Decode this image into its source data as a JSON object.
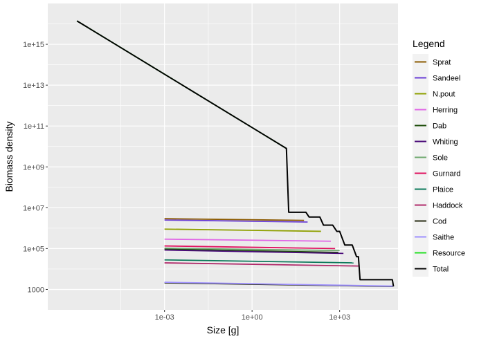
{
  "chart_data": {
    "type": "line",
    "xlabel": "Size [g]",
    "ylabel": "Biomass density",
    "x_scale": "log10",
    "y_scale": "log10",
    "xlim": [
      1e-07,
      100000.0
    ],
    "ylim": [
      100.0,
      1e+17
    ],
    "x_ticks": [
      {
        "value": 0.001,
        "label": "1e-03"
      },
      {
        "value": 1,
        "label": "1e+00"
      },
      {
        "value": 1000,
        "label": "1e+03"
      }
    ],
    "y_ticks": [
      {
        "value": 1000,
        "label": "1000"
      },
      {
        "value": 100000,
        "label": "1e+05"
      },
      {
        "value": 10000000,
        "label": "1e+07"
      },
      {
        "value": 1000000000,
        "label": "1e+09"
      },
      {
        "value": 100000000000,
        "label": "1e+11"
      },
      {
        "value": 10000000000000,
        "label": "1e+13"
      },
      {
        "value": 1000000000000000,
        "label": "1e+15"
      }
    ],
    "grid": true,
    "legend": {
      "title": "Legend",
      "position": "right"
    },
    "series": [
      {
        "name": "Sprat",
        "color": "#8B5A00",
        "x": [
          0.001,
          60
        ],
        "y": [
          2900000,
          2400000
        ]
      },
      {
        "name": "Sandeel",
        "color": "#6B3FD6",
        "x": [
          0.001,
          80
        ],
        "y": [
          2500000,
          2000000
        ]
      },
      {
        "name": "N.pout",
        "color": "#8FA000",
        "x": [
          0.001,
          230
        ],
        "y": [
          900000,
          700000
        ]
      },
      {
        "name": "Herring",
        "color": "#E066E6",
        "x": [
          0.001,
          500
        ],
        "y": [
          290000,
          230000
        ]
      },
      {
        "name": "Dab",
        "color": "#1E4D0A",
        "x": [
          0.001,
          900
        ],
        "y": [
          95000,
          65000
        ]
      },
      {
        "name": "Whiting",
        "color": "#4B0C7A",
        "x": [
          0.001,
          1350
        ],
        "y": [
          85000,
          58000
        ]
      },
      {
        "name": "Sole",
        "color": "#6FA86F",
        "x": [
          0.001,
          1000
        ],
        "y": [
          105000,
          80000
        ]
      },
      {
        "name": "Gurnard",
        "color": "#E0115F",
        "x": [
          0.001,
          700
        ],
        "y": [
          135000,
          100000
        ]
      },
      {
        "name": "Plaice",
        "color": "#0E7A5C",
        "x": [
          0.001,
          3000
        ],
        "y": [
          28000,
          20000
        ]
      },
      {
        "name": "Haddock",
        "color": "#B02A6A",
        "x": [
          0.001,
          4400
        ],
        "y": [
          20000,
          14000
        ]
      },
      {
        "name": "Cod",
        "color": "#252A10",
        "x": [
          0.001,
          66000
        ],
        "y": [
          2100,
          1400
        ]
      },
      {
        "name": "Saithe",
        "color": "#9E90FF",
        "x": [
          0.001,
          66000
        ],
        "y": [
          2250,
          1450
        ]
      },
      {
        "name": "Resource",
        "color": "#22E022",
        "x": [
          1e-06,
          15
        ],
        "y": [
          1.4e+16,
          8000000000.0
        ]
      },
      {
        "name": "Total",
        "color": "#000000",
        "x": [
          1e-06,
          15,
          18,
          70,
          90,
          210,
          280,
          580,
          800,
          1000,
          1250,
          1500,
          2700,
          3800,
          4400,
          5000,
          64000,
          70000
        ],
        "y": [
          1.4e+16,
          8000000000.0,
          6000000.0,
          6000000.0,
          3500000.0,
          3500000.0,
          1400000.0,
          1400000.0,
          700000.0,
          700000.0,
          300000.0,
          150000.0,
          150000.0,
          40000.0,
          40000.0,
          3000.0,
          3000.0,
          1400.0
        ]
      }
    ]
  }
}
